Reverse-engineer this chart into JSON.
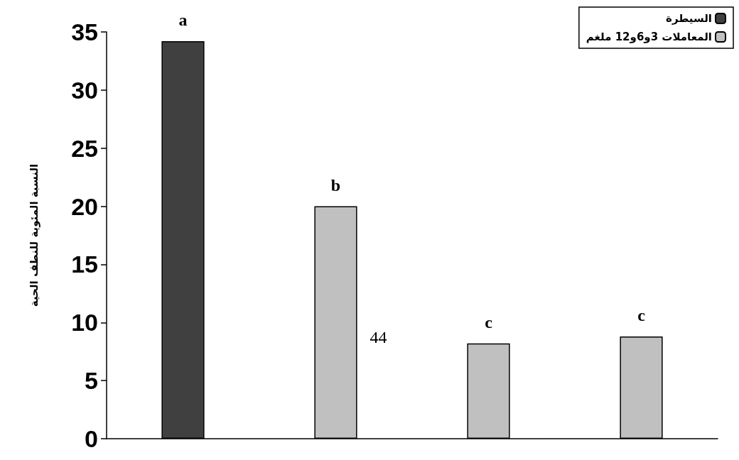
{
  "chart_data": {
    "type": "bar",
    "ylabel": "النسبة المئوية للنطف الحية",
    "categories": [
      null,
      null,
      null,
      null
    ],
    "series": [
      {
        "name": "السيطرة",
        "color": "#404040",
        "values": [
          34.2,
          null,
          null,
          null
        ]
      },
      {
        "name": "المعاملات 3و6و12 ملغم",
        "color": "#c0c0c0",
        "values": [
          null,
          20.0,
          8.2,
          8.8
        ]
      }
    ],
    "ylim": [
      0,
      35
    ],
    "yticks": [
      0,
      5,
      10,
      15,
      20,
      25,
      30,
      35
    ],
    "annotations": [
      "a",
      "b",
      "c",
      "c",
      "44"
    ],
    "grid": false,
    "legend": "top right"
  }
}
